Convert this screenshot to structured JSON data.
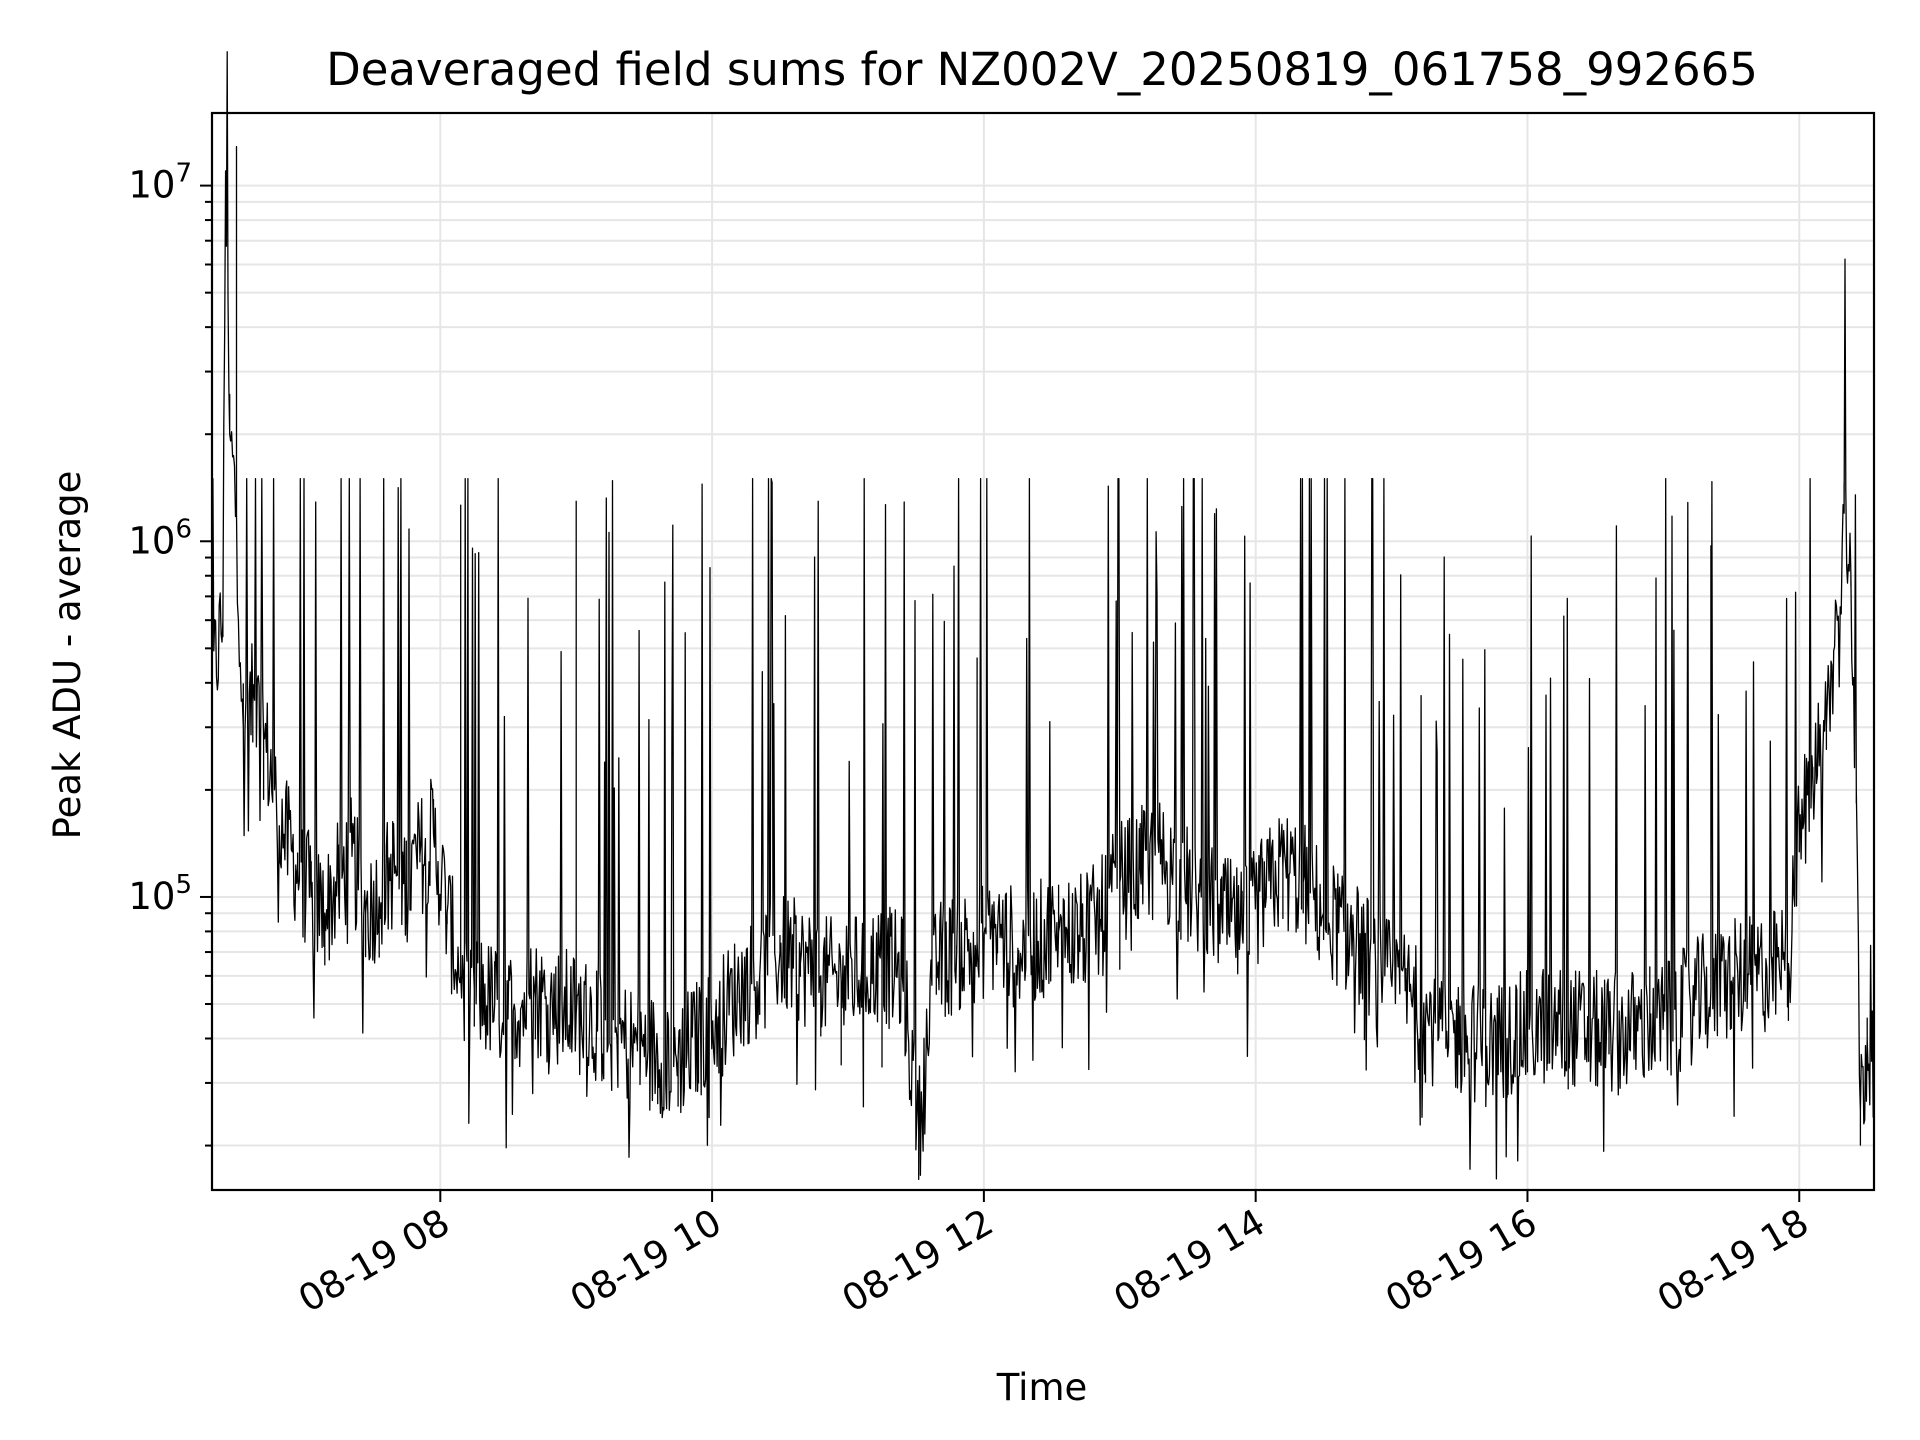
{
  "chart_data": {
    "type": "line",
    "title": "Deaveraged field sums for NZ002V_20250819_061758_992665",
    "xlabel": "Time",
    "ylabel": "Peak ADU - average",
    "y_scale": "log",
    "ylim": [
      15000,
      16000000
    ],
    "x_unit": "hours (2025-08-19)",
    "xlim": [
      6.32,
      18.55
    ],
    "x_ticks": [
      {
        "value": 8,
        "label": "08-19 08"
      },
      {
        "value": 10,
        "label": "08-19 10"
      },
      {
        "value": 12,
        "label": "08-19 12"
      },
      {
        "value": 14,
        "label": "08-19 14"
      },
      {
        "value": 16,
        "label": "08-19 16"
      },
      {
        "value": 18,
        "label": "08-19 18"
      }
    ],
    "y_ticks": [
      {
        "value": 100000,
        "base": "10",
        "exp": "5"
      },
      {
        "value": 1000000,
        "base": "10",
        "exp": "6"
      },
      {
        "value": 10000000,
        "base": "10",
        "exp": "7"
      }
    ],
    "grid": true,
    "line_color": "#000000",
    "series": [
      {
        "x": [
          6.32,
          6.4,
          6.42,
          6.45,
          6.5,
          6.55,
          6.62,
          6.7,
          6.78,
          6.85,
          6.95,
          7.05,
          7.15,
          7.25,
          7.35,
          7.45,
          7.55,
          7.65,
          7.75,
          7.85,
          7.95,
          8.05,
          8.15,
          8.25,
          8.4,
          8.55,
          8.7,
          8.85,
          9.0,
          9.15,
          9.3,
          9.45,
          9.6,
          9.75,
          9.9,
          10.05,
          10.2,
          10.35,
          10.5,
          10.65,
          10.8,
          10.95,
          11.1,
          11.25,
          11.4,
          11.52,
          11.65,
          11.8,
          11.95,
          12.1,
          12.25,
          12.4,
          12.55,
          12.7,
          12.85,
          13.0,
          13.15,
          13.3,
          13.45,
          13.6,
          13.75,
          13.9,
          14.05,
          14.2,
          14.35,
          14.5,
          14.65,
          14.8,
          14.95,
          15.1,
          15.25,
          15.4,
          15.55,
          15.7,
          15.85,
          16.0,
          16.15,
          16.3,
          16.45,
          16.6,
          16.75,
          16.9,
          17.05,
          17.2,
          17.35,
          17.5,
          17.65,
          17.8,
          17.92,
          18.0,
          18.1,
          18.2,
          18.28,
          18.33,
          18.38,
          18.42,
          18.45,
          18.5,
          18.55
        ],
        "y": [
          400000,
          600000,
          11000000,
          2000000,
          1200000,
          300000,
          350000,
          280000,
          200000,
          150000,
          120000,
          100000,
          90000,
          110000,
          130000,
          90000,
          100000,
          120000,
          110000,
          130000,
          150000,
          90000,
          60000,
          55000,
          50000,
          48000,
          52000,
          50000,
          47000,
          45000,
          40000,
          38000,
          36000,
          35000,
          40000,
          45000,
          55000,
          60000,
          70000,
          65000,
          60000,
          58000,
          62000,
          65000,
          60000,
          22000,
          65000,
          70000,
          75000,
          80000,
          70000,
          75000,
          80000,
          78000,
          85000,
          110000,
          120000,
          130000,
          110000,
          100000,
          90000,
          80000,
          100000,
          120000,
          110000,
          90000,
          80000,
          70000,
          60000,
          55000,
          45000,
          42000,
          40000,
          38000,
          40000,
          42000,
          44000,
          43000,
          42000,
          41000,
          42000,
          44000,
          45000,
          50000,
          55000,
          58000,
          60000,
          62000,
          65000,
          150000,
          220000,
          300000,
          600000,
          1200000,
          800000,
          200000,
          25000,
          40000,
          60000
        ]
      }
    ]
  }
}
